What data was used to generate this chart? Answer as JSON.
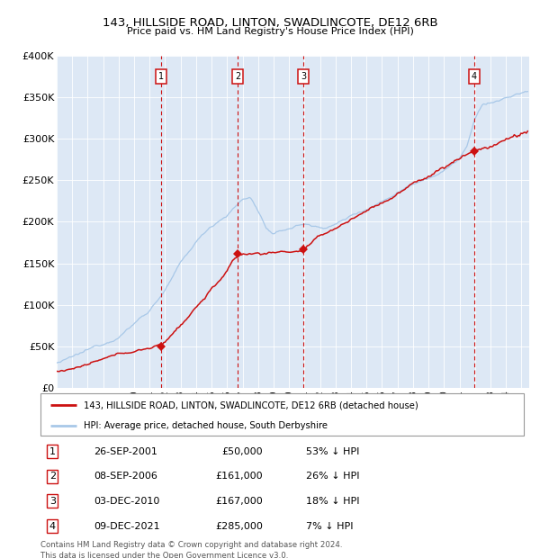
{
  "title": "143, HILLSIDE ROAD, LINTON, SWADLINCOTE, DE12 6RB",
  "subtitle": "Price paid vs. HM Land Registry's House Price Index (HPI)",
  "ylim": [
    0,
    400000
  ],
  "yticks": [
    0,
    50000,
    100000,
    150000,
    200000,
    250000,
    300000,
    350000,
    400000
  ],
  "ytick_labels": [
    "£0",
    "£50K",
    "£100K",
    "£150K",
    "£200K",
    "£250K",
    "£300K",
    "£350K",
    "£400K"
  ],
  "xlim_start": 1995.0,
  "xlim_end": 2025.5,
  "hpi_color": "#a8c8e8",
  "price_color": "#cc1111",
  "plot_bg": "#dde8f5",
  "vline_color": "#cc1111",
  "grid_color": "#ffffff",
  "purchases": [
    {
      "num": 1,
      "year": 2001.74,
      "price": 50000
    },
    {
      "num": 2,
      "year": 2006.69,
      "price": 161000
    },
    {
      "num": 3,
      "year": 2010.92,
      "price": 167000
    },
    {
      "num": 4,
      "year": 2021.94,
      "price": 285000
    }
  ],
  "legend_line1": "143, HILLSIDE ROAD, LINTON, SWADLINCOTE, DE12 6RB (detached house)",
  "legend_line2": "HPI: Average price, detached house, South Derbyshire",
  "footer1": "Contains HM Land Registry data © Crown copyright and database right 2024.",
  "footer2": "This data is licensed under the Open Government Licence v3.0.",
  "table_rows": [
    {
      "num": 1,
      "date": "26-SEP-2001",
      "price": "£50,000",
      "pct": "53% ↓ HPI"
    },
    {
      "num": 2,
      "date": "08-SEP-2006",
      "price": "£161,000",
      "pct": "26% ↓ HPI"
    },
    {
      "num": 3,
      "date": "03-DEC-2010",
      "price": "£167,000",
      "pct": "18% ↓ HPI"
    },
    {
      "num": 4,
      "date": "09-DEC-2021",
      "price": "£285,000",
      "pct": "7% ↓ HPI"
    }
  ]
}
